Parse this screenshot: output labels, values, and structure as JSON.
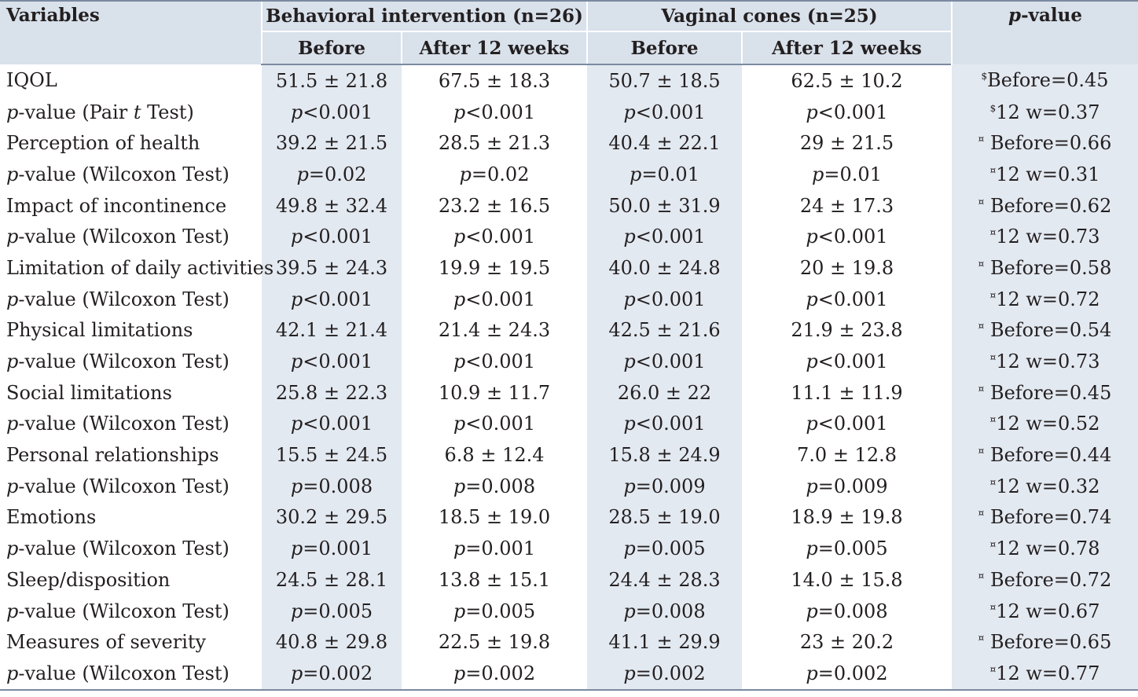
{
  "headers": {
    "variables": "Variables",
    "group1": "Behavioral intervention (n=26)",
    "group2": "Vaginal cones (n=25)",
    "pvalue_italic": "p",
    "pvalue_rest": "-value",
    "before": "Before",
    "after": "After 12 weeks"
  },
  "rows": [
    {
      "label": "IQOL",
      "b1": "51.5 ± 21.8",
      "a1": "67.5 ± 18.3",
      "b2": "50.7 ± 18.5",
      "a2": "62.5 ± 10.2",
      "sym": "$",
      "pv": "Before=0.45"
    },
    {
      "label_it": "p",
      "label": "-value (Pair ",
      "label_it2": "t",
      "label2": " Test)",
      "pre": "p",
      "b1": "<0.001",
      "a1": "<0.001",
      "b2": "<0.001",
      "a2": "<0.001",
      "sym": "$",
      "pv": "12 w=0.37"
    },
    {
      "label": "Perception of health",
      "b1": "39.2 ± 21.5",
      "a1": "28.5 ± 21.3",
      "b2": "40.4 ± 22.1",
      "a2": "29  ± 21.5",
      "sym": "¤",
      "pv": " Before=0.66"
    },
    {
      "label_it": "p",
      "label": "-value (Wilcoxon Test)",
      "pre": "p",
      "b1": "=0.02",
      "a1": "=0.02",
      "b2": "=0.01",
      "a2": "=0.01",
      "sym": "¤",
      "pv": "12 w=0.31"
    },
    {
      "label": "Impact of incontinence",
      "b1": "49.8 ± 32.4",
      "a1": "23.2 ± 16.5",
      "b2": "50.0 ± 31.9",
      "a2": "24  ± 17.3",
      "sym": "¤",
      "pv": " Before=0.62"
    },
    {
      "label_it": "p",
      "label": "-value (Wilcoxon Test)",
      "pre": "p",
      "b1": "<0.001",
      "a1": "<0.001",
      "b2": "<0.001",
      "a2": "<0.001",
      "sym": "¤",
      "pv": "12 w=0.73"
    },
    {
      "label": "Limitation of daily activities",
      "b1": "39.5 ± 24.3",
      "a1": "19.9 ± 19.5",
      "b2": "40.0 ± 24.8",
      "a2": "20  ± 19.8",
      "sym": "¤",
      "pv": " Before=0.58"
    },
    {
      "label_it": "p",
      "label": "-value (Wilcoxon Test)",
      "pre": "p",
      "b1": "<0.001",
      "a1": "<0.001",
      "b2": "<0.001",
      "a2": "<0.001",
      "sym": "¤",
      "pv": "12 w=0.72"
    },
    {
      "label": "Physical limitations",
      "b1": "42.1 ± 21.4",
      "a1": "21.4 ± 24.3",
      "b2": "42.5 ± 21.6",
      "a2": "21.9 ± 23.8",
      "sym": "¤",
      "pv": " Before=0.54"
    },
    {
      "label_it": "p",
      "label": "-value (Wilcoxon Test)",
      "pre": "p",
      "b1": "<0.001",
      "a1": "<0.001",
      "b2": "<0.001",
      "a2": "<0.001",
      "sym": "¤",
      "pv": "12 w=0.73"
    },
    {
      "label": "Social limitations",
      "b1": "25.8 ± 22.3",
      "a1": "10.9 ± 11.7",
      "b2": "26.0 ± 22",
      "a2": "11.1 ± 11.9",
      "sym": "¤",
      "pv": " Before=0.45"
    },
    {
      "label_it": "p",
      "label": "-value (Wilcoxon Test)",
      "pre": "p",
      "b1": "<0.001",
      "a1": "<0.001",
      "b2": "<0.001",
      "a2": "<0.001",
      "sym": "¤",
      "pv": "12 w=0.52"
    },
    {
      "label": "Personal relationships",
      "b1": "15.5 ± 24.5",
      "a1": "6.8 ± 12.4",
      "b2": "15.8 ± 24.9",
      "a2": "7.0  ± 12.8",
      "sym": "¤",
      "pv": " Before=0.44"
    },
    {
      "label_it": "p",
      "label": "-value (Wilcoxon Test)",
      "pre": "p",
      "b1": "=0.008",
      "a1": "=0.008",
      "b2": "=0.009",
      "a2": "=0.009",
      "sym": "¤",
      "pv": "12 w=0.32"
    },
    {
      "label": "Emotions",
      "b1": "30.2 ± 29.5",
      "a1": "18.5 ± 19.0",
      "b2": "28.5 ± 19.0",
      "a2": "18.9 ± 19.8",
      "sym": "¤",
      "pv": " Before=0.74"
    },
    {
      "label_it": "p",
      "label": "-value (Wilcoxon Test)",
      "pre": "p",
      "b1": "=0.001",
      "a1": "=0.001",
      "b2": "=0.005",
      "a2": "=0.005",
      "sym": "¤",
      "pv": "12 w=0.78"
    },
    {
      "label": "Sleep/disposition",
      "b1": "24.5 ± 28.1",
      "a1": "13.8 ± 15.1",
      "b2": "24.4 ± 28.3",
      "a2": "14.0 ± 15.8",
      "sym": "¤",
      "pv": " Before=0.72"
    },
    {
      "label_it": "p",
      "label": "-value (Wilcoxon Test)",
      "pre": "p",
      "b1": "=0.005",
      "a1": "=0.005",
      "b2": "=0.008",
      "a2": "=0.008",
      "sym": "¤",
      "pv": "12 w=0.67"
    },
    {
      "label": "Measures of severity",
      "b1": "40.8 ± 29.8",
      "a1": "22.5 ± 19.8",
      "b2": "41.1 ± 29.9",
      "a2": "23 ± 20.2",
      "sym": "¤",
      "pv": " Before=0.65"
    },
    {
      "label_it": "p",
      "label": "-value (Wilcoxon Test)",
      "pre": "p",
      "b1": "=0.002",
      "a1": "=0.002",
      "b2": "=0.002",
      "a2": "=0.002",
      "sym": "¤",
      "pv": "12 w=0.77"
    }
  ]
}
